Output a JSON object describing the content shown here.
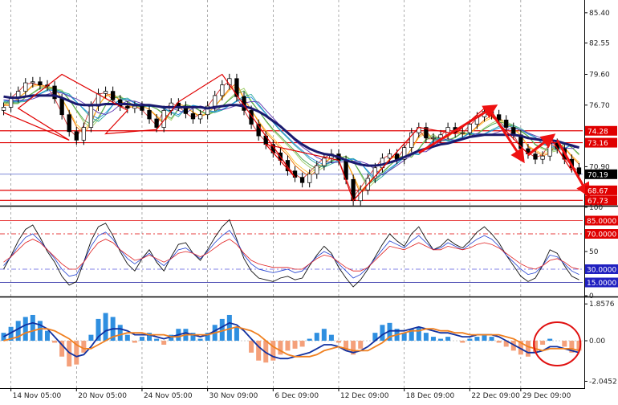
{
  "chart_data": [
    {
      "type": "candlestick",
      "panel": "price",
      "x_unit": "bar index (4 bars per tick interval)",
      "x_ticks": [
        "14 Nov 05:00",
        "20 Nov 05:00",
        "24 Nov 05:00",
        "30 Nov 09:00",
        "6 Dec 09:00",
        "12 Dec 09:00",
        "18 Dec 09:00",
        "22 Dec 09:00",
        "29 Dec 09:00"
      ],
      "y_ticks": [
        85.4,
        82.55,
        79.6,
        76.7,
        70.9
      ],
      "ylim": [
        67.3,
        86.6
      ],
      "horizontal_lines": [
        {
          "label": "74.28",
          "value": 74.28,
          "color": "#e00000"
        },
        {
          "label": "73.16",
          "value": 73.16,
          "color": "#e00000"
        },
        {
          "label": "68.67",
          "value": 68.67,
          "color": "#e00000"
        },
        {
          "label": "67.73",
          "value": 67.73,
          "color": "#e00000"
        },
        {
          "label": "70.19",
          "value": 70.19,
          "color": "#3040c0",
          "current": true
        }
      ],
      "close": [
        76.5,
        77.4,
        78.0,
        78.8,
        78.9,
        78.6,
        78.5,
        77.3,
        75.8,
        74.2,
        73.4,
        74.6,
        76.6,
        77.8,
        78.0,
        77.2,
        76.6,
        76.4,
        76.6,
        76.2,
        75.4,
        74.6,
        76.2,
        76.9,
        76.6,
        75.9,
        75.4,
        75.8,
        76.6,
        77.6,
        78.6,
        79.2,
        77.5,
        76.2,
        74.9,
        73.8,
        73.0,
        72.2,
        71.5,
        70.5,
        69.9,
        69.4,
        70.2,
        71.0,
        71.7,
        72.1,
        71.5,
        69.7,
        67.7,
        68.7,
        69.8,
        70.8,
        71.7,
        72.1,
        71.6,
        72.7,
        74.1,
        74.6,
        73.6,
        73.6,
        73.9,
        74.6,
        74.1,
        74.1,
        74.9,
        75.6,
        76.1,
        75.8,
        75.3,
        74.6,
        73.9,
        72.6,
        72.1,
        71.6,
        71.9,
        73.1,
        72.6,
        71.6,
        70.8,
        70.2
      ],
      "ema_slow": [
        77.5,
        77.4,
        77.4,
        77.5,
        77.6,
        77.6,
        77.6,
        77.6,
        77.4,
        77.1,
        76.8,
        76.7,
        76.7,
        76.7,
        76.8,
        76.8,
        76.8,
        76.8,
        76.7,
        76.7,
        76.7,
        76.6,
        76.5,
        76.5,
        76.5,
        76.5,
        76.5,
        76.5,
        76.4,
        76.5,
        76.6,
        76.7,
        76.7,
        76.6,
        76.4,
        76.1,
        75.7,
        75.2,
        74.7,
        74.1,
        73.5,
        73.0,
        72.6,
        72.3,
        72.1,
        72.0,
        71.8,
        71.5,
        71.3,
        71.1,
        71.0,
        71.0,
        71.1,
        71.3,
        71.5,
        71.8,
        72.1,
        72.4,
        72.6,
        72.8,
        73.0,
        73.1,
        73.3,
        73.5,
        73.7,
        73.8,
        73.9,
        73.9,
        73.9,
        73.9,
        73.9,
        73.8,
        73.6,
        73.5,
        73.4,
        73.4,
        73.3,
        73.1,
        72.9,
        72.7
      ],
      "ribbon_colors": [
        "#d32f2f",
        "#ef6c00",
        "#fbc02d",
        "#9ccc65",
        "#43a047",
        "#26a69a",
        "#1e88e5",
        "#5e35b1"
      ],
      "zigzag": [
        [
          0,
          76.0
        ],
        [
          9,
          73.4
        ],
        [
          2,
          76.4
        ],
        [
          8,
          79.6
        ],
        [
          17,
          76.2
        ],
        [
          14,
          74.0
        ],
        [
          21,
          74.4
        ],
        [
          24,
          77.0
        ],
        [
          30,
          79.6
        ],
        [
          40,
          69.9
        ],
        [
          36,
          73.0
        ],
        [
          46,
          71.5
        ],
        [
          48,
          67.7
        ],
        [
          57,
          74.6
        ],
        [
          62,
          74.0
        ],
        [
          66,
          76.4
        ],
        [
          72,
          72.1
        ],
        [
          75,
          73.7
        ],
        [
          78,
          70.5
        ]
      ],
      "arrows": [
        [
          [
            57,
            72.2
          ],
          [
            67,
            76.4
          ]
        ],
        [
          [
            67,
            76.0
          ],
          [
            71,
            71.8
          ]
        ],
        [
          [
            72,
            72.0
          ],
          [
            75,
            73.6
          ]
        ],
        [
          [
            76,
            73.4
          ],
          [
            80,
            68.6
          ]
        ]
      ]
    },
    {
      "type": "line",
      "panel": "oscillator",
      "ylim": [
        0,
        100
      ],
      "y_ticks": [
        100,
        85,
        70,
        50,
        30,
        15,
        0
      ],
      "levels": [
        {
          "label": "85.0000",
          "value": 85
        },
        {
          "label": "70.0000",
          "value": 70
        },
        {
          "label": "30.0000",
          "value": 30
        },
        {
          "label": "15.0000",
          "value": 15
        }
      ],
      "series": [
        {
          "color": "#111111",
          "values": [
            30,
            45,
            62,
            75,
            80,
            66,
            50,
            38,
            22,
            12,
            16,
            38,
            62,
            78,
            82,
            68,
            50,
            36,
            28,
            42,
            52,
            38,
            28,
            44,
            58,
            60,
            48,
            40,
            52,
            66,
            78,
            86,
            64,
            42,
            28,
            20,
            18,
            16,
            20,
            22,
            18,
            20,
            34,
            46,
            56,
            48,
            32,
            20,
            10,
            18,
            30,
            44,
            58,
            70,
            62,
            56,
            70,
            78,
            64,
            52,
            56,
            64,
            58,
            54,
            62,
            72,
            78,
            70,
            60,
            46,
            34,
            22,
            16,
            20,
            34,
            52,
            48,
            34,
            22,
            18
          ]
        },
        {
          "color": "#2040d0",
          "values": [
            34,
            44,
            56,
            66,
            70,
            62,
            52,
            42,
            30,
            22,
            24,
            38,
            56,
            68,
            72,
            64,
            52,
            42,
            36,
            42,
            48,
            40,
            34,
            42,
            52,
            54,
            48,
            42,
            50,
            60,
            68,
            74,
            62,
            46,
            36,
            30,
            28,
            26,
            28,
            30,
            26,
            28,
            36,
            44,
            50,
            46,
            36,
            28,
            20,
            24,
            32,
            42,
            52,
            62,
            58,
            54,
            62,
            68,
            60,
            52,
            54,
            60,
            56,
            52,
            58,
            64,
            68,
            64,
            56,
            46,
            38,
            30,
            24,
            26,
            34,
            46,
            44,
            36,
            28,
            24
          ]
        },
        {
          "color": "#e02020",
          "values": [
            38,
            44,
            52,
            60,
            64,
            60,
            52,
            44,
            36,
            30,
            30,
            38,
            50,
            60,
            64,
            60,
            52,
            46,
            40,
            42,
            46,
            42,
            38,
            42,
            48,
            50,
            48,
            44,
            48,
            54,
            60,
            64,
            58,
            48,
            40,
            36,
            34,
            32,
            32,
            32,
            30,
            30,
            36,
            42,
            46,
            44,
            38,
            32,
            28,
            28,
            32,
            40,
            48,
            56,
            54,
            52,
            56,
            60,
            56,
            52,
            52,
            56,
            54,
            52,
            54,
            58,
            60,
            58,
            54,
            48,
            42,
            36,
            32,
            30,
            34,
            40,
            42,
            38,
            32,
            30
          ]
        }
      ]
    },
    {
      "type": "histogram",
      "panel": "macd",
      "ylim": [
        -2.35,
        2.15
      ],
      "y_ticks": [
        1.8576,
        0.0,
        -2.0452
      ],
      "histogram": [
        0.4,
        0.7,
        1.0,
        1.2,
        1.3,
        1.0,
        0.5,
        -0.1,
        -0.8,
        -1.3,
        -1.2,
        -0.6,
        0.3,
        1.1,
        1.4,
        1.2,
        0.8,
        0.3,
        -0.1,
        0.2,
        0.4,
        0.1,
        -0.2,
        0.3,
        0.6,
        0.6,
        0.4,
        0.1,
        0.4,
        0.8,
        1.1,
        1.3,
        0.7,
        0.0,
        -0.6,
        -1.0,
        -1.1,
        -1.0,
        -0.7,
        -0.5,
        -0.4,
        -0.3,
        0.1,
        0.4,
        0.6,
        0.3,
        -0.1,
        -0.5,
        -0.7,
        -0.4,
        0.0,
        0.4,
        0.8,
        0.9,
        0.6,
        0.4,
        0.6,
        0.7,
        0.4,
        0.2,
        0.1,
        0.2,
        0.0,
        -0.1,
        0.1,
        0.2,
        0.3,
        0.2,
        -0.1,
        -0.3,
        -0.5,
        -0.7,
        -0.8,
        -0.6,
        -0.2,
        0.1,
        0.0,
        -0.3,
        -0.6,
        -0.5
      ],
      "series": [
        {
          "color": "#1030a0",
          "values": [
            0.2,
            0.4,
            0.6,
            0.8,
            0.9,
            0.8,
            0.6,
            0.2,
            -0.2,
            -0.6,
            -0.8,
            -0.7,
            -0.3,
            0.2,
            0.5,
            0.6,
            0.6,
            0.5,
            0.3,
            0.3,
            0.3,
            0.2,
            0.1,
            0.2,
            0.3,
            0.4,
            0.3,
            0.2,
            0.3,
            0.5,
            0.7,
            0.9,
            0.8,
            0.5,
            0.1,
            -0.3,
            -0.6,
            -0.8,
            -0.9,
            -0.9,
            -0.8,
            -0.7,
            -0.6,
            -0.4,
            -0.2,
            -0.2,
            -0.3,
            -0.5,
            -0.6,
            -0.5,
            -0.3,
            0.0,
            0.3,
            0.5,
            0.5,
            0.5,
            0.6,
            0.7,
            0.6,
            0.5,
            0.4,
            0.4,
            0.3,
            0.2,
            0.2,
            0.3,
            0.3,
            0.3,
            0.2,
            0.0,
            -0.2,
            -0.4,
            -0.6,
            -0.6,
            -0.5,
            -0.3,
            -0.3,
            -0.4,
            -0.5,
            -0.6
          ]
        },
        {
          "color": "#f08020",
          "values": [
            0.0,
            0.1,
            0.2,
            0.4,
            0.5,
            0.6,
            0.6,
            0.5,
            0.3,
            0.1,
            -0.2,
            -0.4,
            -0.4,
            -0.2,
            0.0,
            0.2,
            0.3,
            0.4,
            0.4,
            0.4,
            0.3,
            0.3,
            0.3,
            0.2,
            0.2,
            0.3,
            0.3,
            0.3,
            0.3,
            0.4,
            0.5,
            0.6,
            0.7,
            0.6,
            0.5,
            0.3,
            0.0,
            -0.3,
            -0.5,
            -0.7,
            -0.8,
            -0.8,
            -0.8,
            -0.7,
            -0.5,
            -0.4,
            -0.3,
            -0.4,
            -0.5,
            -0.5,
            -0.5,
            -0.3,
            -0.1,
            0.2,
            0.3,
            0.4,
            0.5,
            0.5,
            0.6,
            0.6,
            0.5,
            0.5,
            0.4,
            0.4,
            0.3,
            0.3,
            0.3,
            0.3,
            0.3,
            0.2,
            0.1,
            -0.1,
            -0.3,
            -0.4,
            -0.5,
            -0.4,
            -0.4,
            -0.4,
            -0.4,
            -0.5
          ]
        }
      ],
      "highlight_circle_bar": 76
    }
  ]
}
